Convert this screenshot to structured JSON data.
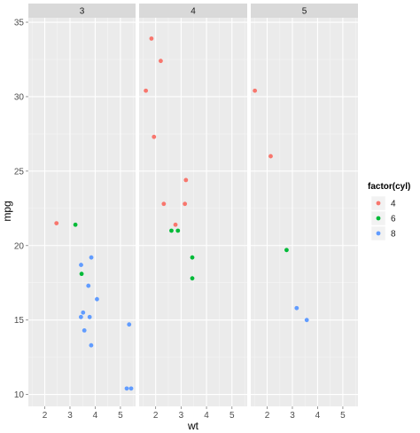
{
  "chart_data": {
    "type": "scatter",
    "facet_variable": "gear",
    "facets": [
      "3",
      "4",
      "5"
    ],
    "xlabel": "wt",
    "ylabel": "mpg",
    "xlim": [
      1.35,
      5.6
    ],
    "ylim": [
      9.2,
      35.3
    ],
    "x_ticks": [
      2,
      3,
      4,
      5
    ],
    "y_ticks": [
      10,
      15,
      20,
      25,
      30,
      35
    ],
    "grid": true,
    "legend": {
      "title": "factor(cyl)",
      "position": "right",
      "entries": [
        {
          "label": "4",
          "color": "#F8766D"
        },
        {
          "label": "6",
          "color": "#00BA38"
        },
        {
          "label": "8",
          "color": "#619CFF"
        }
      ]
    },
    "points": [
      {
        "facet": "3",
        "cyl": "4",
        "x": 2.465,
        "y": 21.5
      },
      {
        "facet": "3",
        "cyl": "6",
        "x": 3.215,
        "y": 21.4
      },
      {
        "facet": "3",
        "cyl": "6",
        "x": 3.46,
        "y": 18.1
      },
      {
        "facet": "3",
        "cyl": "8",
        "x": 3.44,
        "y": 18.7
      },
      {
        "facet": "3",
        "cyl": "8",
        "x": 3.57,
        "y": 14.3
      },
      {
        "facet": "3",
        "cyl": "8",
        "x": 4.07,
        "y": 16.4
      },
      {
        "facet": "3",
        "cyl": "8",
        "x": 3.73,
        "y": 17.3
      },
      {
        "facet": "3",
        "cyl": "8",
        "x": 3.78,
        "y": 15.2
      },
      {
        "facet": "3",
        "cyl": "8",
        "x": 5.25,
        "y": 10.4
      },
      {
        "facet": "3",
        "cyl": "8",
        "x": 5.424,
        "y": 10.4
      },
      {
        "facet": "3",
        "cyl": "8",
        "x": 5.345,
        "y": 14.7
      },
      {
        "facet": "3",
        "cyl": "8",
        "x": 3.52,
        "y": 15.5
      },
      {
        "facet": "3",
        "cyl": "8",
        "x": 3.435,
        "y": 15.2
      },
      {
        "facet": "3",
        "cyl": "8",
        "x": 3.84,
        "y": 13.3
      },
      {
        "facet": "3",
        "cyl": "8",
        "x": 3.845,
        "y": 19.2
      },
      {
        "facet": "4",
        "cyl": "4",
        "x": 2.32,
        "y": 22.8
      },
      {
        "facet": "4",
        "cyl": "4",
        "x": 3.19,
        "y": 24.4
      },
      {
        "facet": "4",
        "cyl": "4",
        "x": 3.15,
        "y": 22.8
      },
      {
        "facet": "4",
        "cyl": "4",
        "x": 2.2,
        "y": 32.4
      },
      {
        "facet": "4",
        "cyl": "4",
        "x": 1.615,
        "y": 30.4
      },
      {
        "facet": "4",
        "cyl": "4",
        "x": 1.835,
        "y": 33.9
      },
      {
        "facet": "4",
        "cyl": "4",
        "x": 1.935,
        "y": 27.3
      },
      {
        "facet": "4",
        "cyl": "4",
        "x": 2.78,
        "y": 21.4
      },
      {
        "facet": "4",
        "cyl": "6",
        "x": 2.62,
        "y": 21.0
      },
      {
        "facet": "4",
        "cyl": "6",
        "x": 2.875,
        "y": 21.0
      },
      {
        "facet": "4",
        "cyl": "6",
        "x": 3.44,
        "y": 19.2
      },
      {
        "facet": "4",
        "cyl": "6",
        "x": 3.44,
        "y": 17.8
      },
      {
        "facet": "5",
        "cyl": "4",
        "x": 2.14,
        "y": 26.0
      },
      {
        "facet": "5",
        "cyl": "4",
        "x": 1.513,
        "y": 30.4
      },
      {
        "facet": "5",
        "cyl": "6",
        "x": 2.77,
        "y": 19.7
      },
      {
        "facet": "5",
        "cyl": "8",
        "x": 3.17,
        "y": 15.8
      },
      {
        "facet": "5",
        "cyl": "8",
        "x": 3.57,
        "y": 15.0
      }
    ]
  }
}
